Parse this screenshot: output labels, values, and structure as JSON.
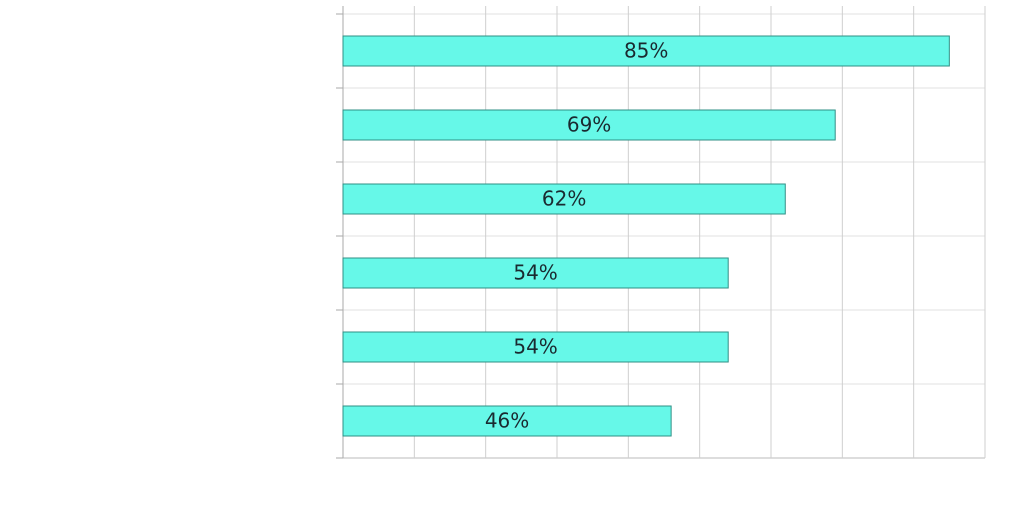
{
  "chart_data": {
    "type": "barh",
    "categories": [
      null,
      null,
      null,
      null,
      null,
      null
    ],
    "values": [
      85,
      69,
      62,
      54,
      54,
      46
    ],
    "value_labels": [
      "85%",
      "69%",
      "62%",
      "54%",
      "54%",
      "46%"
    ],
    "color": "#66f8e8",
    "xlim": [
      0,
      90
    ],
    "xticks": [
      0,
      10,
      20,
      30,
      40,
      50,
      60,
      70,
      80,
      90
    ],
    "grid": true
  }
}
